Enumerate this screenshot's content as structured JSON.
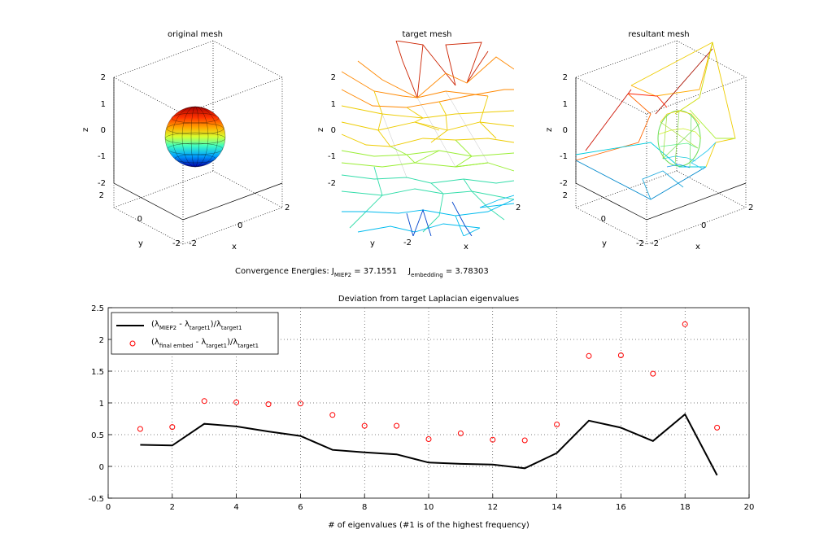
{
  "panels": [
    {
      "title": "original mesh",
      "xlabel": "x",
      "ylabel": "y",
      "zlabel": "z",
      "z_ticks": [
        "2",
        "1",
        "0",
        "-1",
        "-2"
      ],
      "y_ticks": [
        "2",
        "0",
        "-2"
      ],
      "x_ticks": [
        "-2",
        "0",
        "2"
      ]
    },
    {
      "title": "target mesh",
      "xlabel": "x",
      "ylabel": "y",
      "zlabel": "z",
      "z_ticks": [
        "2",
        "1",
        "0",
        "-1",
        "-2"
      ],
      "y_ticks": [
        "-2"
      ],
      "x_ticks": [
        "2"
      ]
    },
    {
      "title": "resultant mesh",
      "xlabel": "x",
      "ylabel": "y",
      "zlabel": "z",
      "z_ticks": [
        "2",
        "1",
        "0",
        "-1",
        "-2"
      ],
      "y_ticks": [
        "2",
        "0",
        "-2"
      ],
      "x_ticks": [
        "-2",
        "0",
        "2"
      ]
    }
  ],
  "energies": {
    "label": "Convergence Energies: J",
    "miep_sub": "MIEP2",
    "miep_value": " = 37.1551",
    "embed_label": "J",
    "embed_sub": "embedding",
    "embed_value": " = 3.78303"
  },
  "chart_data": {
    "type": "line",
    "title": "Deviation from target Laplacian eigenvalues",
    "xlabel": "# of eigenvalues (#1 is of the highest frequency)",
    "ylabel": "",
    "xlim": [
      0,
      20
    ],
    "ylim": [
      -0.5,
      2.5
    ],
    "x_ticks": [
      0,
      2,
      4,
      6,
      8,
      10,
      12,
      14,
      16,
      18,
      20
    ],
    "y_ticks": [
      -0.5,
      0,
      0.5,
      1,
      1.5,
      2,
      2.5
    ],
    "grid": true,
    "legend_position": "top-left",
    "series": [
      {
        "legend_main": "(λ",
        "legend_sub1": "MIEP2",
        "legend_mid": " - λ",
        "legend_sub2": "target1",
        "legend_end": ")/λ",
        "legend_sub3": "target1",
        "style": "line",
        "color": "#000000",
        "x": [
          1,
          2,
          3,
          4,
          5,
          6,
          7,
          8,
          9,
          10,
          11,
          12,
          13,
          14,
          15,
          16,
          17,
          18,
          19
        ],
        "values": [
          0.34,
          0.33,
          0.67,
          0.63,
          0.55,
          0.48,
          0.26,
          0.22,
          0.19,
          0.06,
          0.04,
          0.03,
          -0.03,
          0.21,
          0.72,
          0.61,
          0.4,
          0.82,
          -0.14
        ]
      },
      {
        "legend_main": "(λ",
        "legend_sub1": "final embed",
        "legend_mid": " - λ",
        "legend_sub2": "target1",
        "legend_end": ")/λ",
        "legend_sub3": "target1",
        "style": "marker-circle",
        "color": "#ff0000",
        "x": [
          1,
          2,
          3,
          4,
          5,
          6,
          7,
          8,
          9,
          10,
          11,
          12,
          13,
          14,
          15,
          16,
          17,
          18,
          19
        ],
        "values": [
          0.59,
          0.62,
          1.03,
          1.01,
          0.98,
          0.99,
          0.81,
          0.64,
          0.64,
          0.43,
          0.52,
          0.42,
          0.41,
          0.66,
          1.74,
          1.75,
          1.46,
          2.24,
          0.61
        ]
      }
    ]
  }
}
